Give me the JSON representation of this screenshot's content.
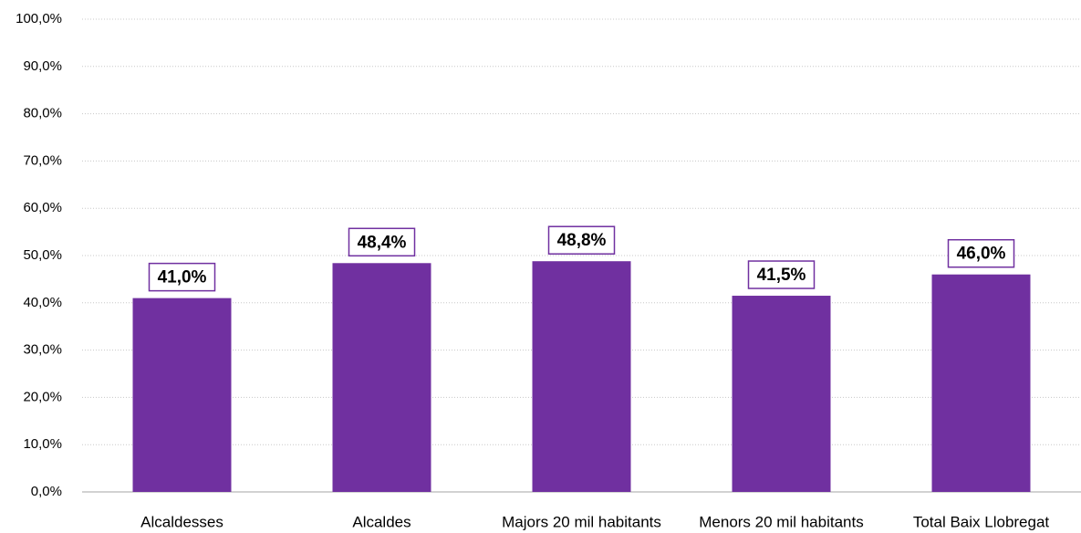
{
  "chart_data": {
    "type": "bar",
    "categories": [
      "Alcaldesses",
      "Alcaldes",
      "Majors 20 mil habitants",
      "Menors 20 mil habitants",
      "Total Baix Llobregat"
    ],
    "values": [
      41.0,
      48.4,
      48.8,
      41.5,
      46.0
    ],
    "value_labels": [
      "41,0%",
      "48,4%",
      "48,8%",
      "41,5%",
      "46,0%"
    ],
    "color": "#7030a0",
    "ylim": [
      0,
      100
    ],
    "yticks": [
      {
        "value": 0,
        "label": "0,0%"
      },
      {
        "value": 10,
        "label": "10,0%"
      },
      {
        "value": 20,
        "label": "20,0%"
      },
      {
        "value": 30,
        "label": "30,0%"
      },
      {
        "value": 40,
        "label": "40,0%"
      },
      {
        "value": 50,
        "label": "50,0%"
      },
      {
        "value": 60,
        "label": "60,0%"
      },
      {
        "value": 70,
        "label": "70,0%"
      },
      {
        "value": 80,
        "label": "80,0%"
      },
      {
        "value": 90,
        "label": "90,0%"
      },
      {
        "value": 100,
        "label": "100,0%"
      }
    ],
    "grid": true
  }
}
